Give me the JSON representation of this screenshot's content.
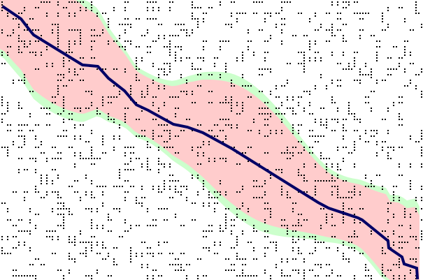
{
  "colors": {
    "background": "#ffffff",
    "band_core": "#ffcccc",
    "band_margin": "#ccffcc",
    "path": "#000066",
    "dots": "#000000"
  }
}
